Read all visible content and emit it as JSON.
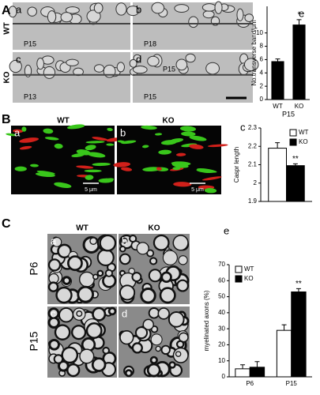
{
  "figure": {
    "panel_letters": [
      "A",
      "B",
      "C"
    ],
    "A": {
      "rows": [
        "WT",
        "KO"
      ],
      "images": [
        {
          "letter": "a",
          "label": "P15"
        },
        {
          "letter": "b",
          "label": "P18"
        },
        {
          "letter": "c",
          "label": "P13"
        },
        {
          "letter": "d",
          "label": "P15",
          "inner_label": "P15"
        }
      ]
    },
    "B": {
      "images": [
        {
          "letter": "a",
          "label": "WT",
          "scale": "5 μm"
        },
        {
          "letter": "b",
          "label": "KO",
          "scale": "5 μm"
        }
      ]
    },
    "C": {
      "columns": [
        "WT",
        "KO"
      ],
      "rows": [
        "P6",
        "P15"
      ],
      "letters": [
        "a",
        "b",
        "c",
        "d"
      ]
    }
  },
  "chart_data": [
    {
      "type": "bar",
      "panel": "e",
      "categories": [
        "WT",
        "KO"
      ],
      "values": [
        5.7,
        11.2
      ],
      "errors": [
        0.4,
        0.8
      ],
      "significance": [
        null,
        "*"
      ],
      "color": "#000000",
      "ylim": [
        0,
        14
      ],
      "yticks": [
        0,
        2,
        4,
        6,
        8,
        10
      ],
      "ylabel": "No.transverse band/μm",
      "xlabel": "P15"
    },
    {
      "type": "bar",
      "panel": "c",
      "ylim": [
        1.9,
        2.3
      ],
      "yticks": [
        1.9,
        2,
        2.1,
        2.2,
        2.3
      ],
      "ylabel": "Caspr length",
      "legend": "top-right",
      "series": [
        {
          "name": "WT",
          "color": "#ffffff",
          "values": [
            2.19
          ],
          "errors": [
            0.03
          ]
        },
        {
          "name": "KO",
          "color": "#000000",
          "values": [
            2.095
          ],
          "errors": [
            0.01
          ],
          "significance": [
            "**"
          ]
        }
      ]
    },
    {
      "type": "bar",
      "panel": "e",
      "categories": [
        "P6",
        "P15"
      ],
      "ylim": [
        0,
        70
      ],
      "yticks": [
        0,
        10,
        20,
        30,
        40,
        50,
        60,
        70
      ],
      "ylabel": "myelinated axons (%)",
      "legend": "top-left",
      "series": [
        {
          "name": "WT",
          "color": "#ffffff",
          "values": [
            5,
            29
          ],
          "errors": [
            2.5,
            3.5
          ]
        },
        {
          "name": "KO",
          "color": "#000000",
          "values": [
            6,
            53
          ],
          "errors": [
            3.5,
            2
          ],
          "significance": [
            null,
            "**"
          ]
        }
      ]
    }
  ]
}
